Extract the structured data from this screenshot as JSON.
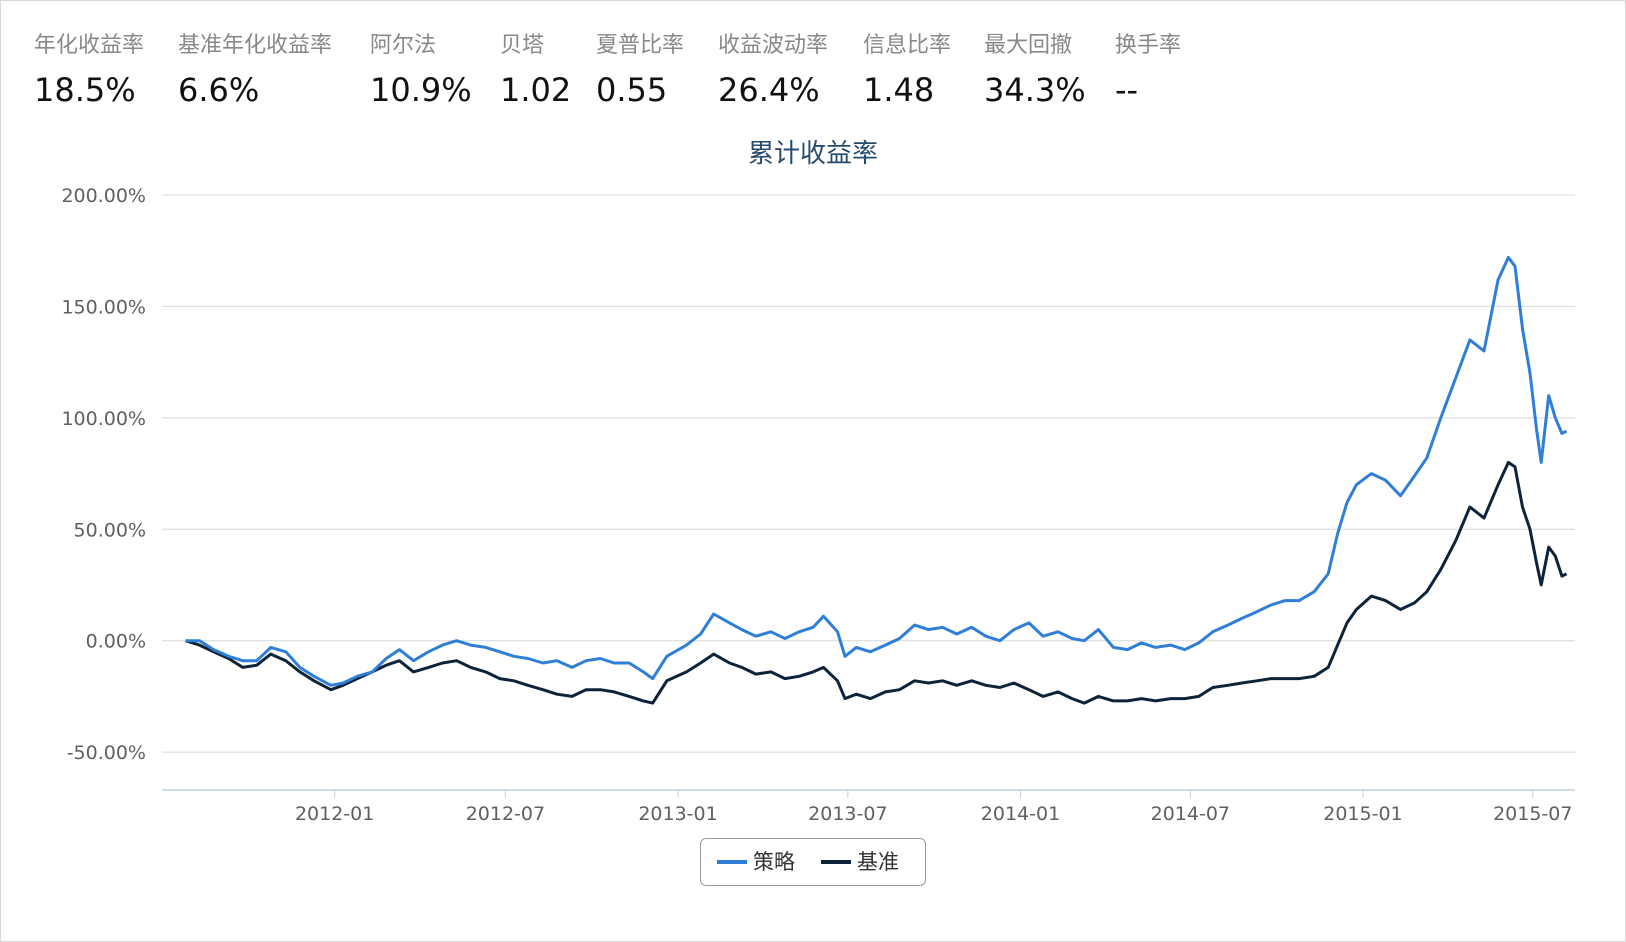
{
  "metrics": [
    {
      "label": "年化收益率",
      "value": "18.5%"
    },
    {
      "label": "基准年化收益率",
      "value": "6.6%"
    },
    {
      "label": "阿尔法",
      "value": "10.9%"
    },
    {
      "label": "贝塔",
      "value": "1.02"
    },
    {
      "label": "夏普比率",
      "value": "0.55"
    },
    {
      "label": "收益波动率",
      "value": "26.4%"
    },
    {
      "label": "信息比率",
      "value": "1.48"
    },
    {
      "label": "最大回撤",
      "value": "34.3%"
    },
    {
      "label": "换手率",
      "value": "--"
    }
  ],
  "chart_data": {
    "type": "line",
    "title": "累计收益率",
    "y_tick_labels": [
      "200.00%",
      "150.00%",
      "100.00%",
      "50.00%",
      "0.00%",
      "-50.00%"
    ],
    "y_ticks": [
      200,
      150,
      100,
      50,
      0,
      -50
    ],
    "ylim": [
      -67,
      200
    ],
    "x_tick_labels": [
      "2012-01",
      "2012-07",
      "2013-01",
      "2013-07",
      "2014-01",
      "2014-07",
      "2015-01",
      "2015-07"
    ],
    "x_ticks": [
      "2012-01-01",
      "2012-07-01",
      "2013-01-01",
      "2013-07-01",
      "2014-01-01",
      "2014-07-01",
      "2015-01-01",
      "2015-07-01"
    ],
    "xlim": [
      "2011-07-01",
      "2015-08-15"
    ],
    "grid": true,
    "legend_position": "bottom-center",
    "series": [
      {
        "name": "策略",
        "color": "#2f7ed8",
        "points": [
          [
            "2011-07-26",
            0
          ],
          [
            "2011-08-10",
            0
          ],
          [
            "2011-08-25",
            -4
          ],
          [
            "2011-09-10",
            -7
          ],
          [
            "2011-09-25",
            -9
          ],
          [
            "2011-10-10",
            -9
          ],
          [
            "2011-10-25",
            -3
          ],
          [
            "2011-11-10",
            -5
          ],
          [
            "2011-11-25",
            -12
          ],
          [
            "2011-12-10",
            -16
          ],
          [
            "2011-12-28",
            -20
          ],
          [
            "2012-01-10",
            -19
          ],
          [
            "2012-01-25",
            -16
          ],
          [
            "2012-02-10",
            -14
          ],
          [
            "2012-02-25",
            -8
          ],
          [
            "2012-03-10",
            -4
          ],
          [
            "2012-03-25",
            -9
          ],
          [
            "2012-04-10",
            -5
          ],
          [
            "2012-04-25",
            -2
          ],
          [
            "2012-05-10",
            0
          ],
          [
            "2012-05-25",
            -2
          ],
          [
            "2012-06-10",
            -3
          ],
          [
            "2012-06-25",
            -5
          ],
          [
            "2012-07-10",
            -7
          ],
          [
            "2012-07-25",
            -8
          ],
          [
            "2012-08-10",
            -10
          ],
          [
            "2012-08-25",
            -9
          ],
          [
            "2012-09-10",
            -12
          ],
          [
            "2012-09-25",
            -9
          ],
          [
            "2012-10-10",
            -8
          ],
          [
            "2012-10-25",
            -10
          ],
          [
            "2012-11-10",
            -10
          ],
          [
            "2012-11-25",
            -14
          ],
          [
            "2012-12-05",
            -17
          ],
          [
            "2012-12-20",
            -7
          ],
          [
            "2013-01-10",
            -2
          ],
          [
            "2013-01-25",
            3
          ],
          [
            "2013-02-08",
            12
          ],
          [
            "2013-02-25",
            8
          ],
          [
            "2013-03-10",
            5
          ],
          [
            "2013-03-25",
            2
          ],
          [
            "2013-04-10",
            4
          ],
          [
            "2013-04-25",
            1
          ],
          [
            "2013-05-10",
            4
          ],
          [
            "2013-05-25",
            6
          ],
          [
            "2013-06-05",
            11
          ],
          [
            "2013-06-20",
            4
          ],
          [
            "2013-06-28",
            -7
          ],
          [
            "2013-07-10",
            -3
          ],
          [
            "2013-07-25",
            -5
          ],
          [
            "2013-08-10",
            -2
          ],
          [
            "2013-08-25",
            1
          ],
          [
            "2013-09-10",
            7
          ],
          [
            "2013-09-25",
            5
          ],
          [
            "2013-10-10",
            6
          ],
          [
            "2013-10-25",
            3
          ],
          [
            "2013-11-10",
            6
          ],
          [
            "2013-11-25",
            2
          ],
          [
            "2013-12-10",
            0
          ],
          [
            "2013-12-25",
            5
          ],
          [
            "2014-01-10",
            8
          ],
          [
            "2014-01-25",
            2
          ],
          [
            "2014-02-10",
            4
          ],
          [
            "2014-02-25",
            1
          ],
          [
            "2014-03-10",
            0
          ],
          [
            "2014-03-25",
            5
          ],
          [
            "2014-04-10",
            -3
          ],
          [
            "2014-04-25",
            -4
          ],
          [
            "2014-05-10",
            -1
          ],
          [
            "2014-05-25",
            -3
          ],
          [
            "2014-06-10",
            -2
          ],
          [
            "2014-06-25",
            -4
          ],
          [
            "2014-07-10",
            -1
          ],
          [
            "2014-07-25",
            4
          ],
          [
            "2014-08-10",
            7
          ],
          [
            "2014-08-25",
            10
          ],
          [
            "2014-09-10",
            13
          ],
          [
            "2014-09-25",
            16
          ],
          [
            "2014-10-10",
            18
          ],
          [
            "2014-10-25",
            18
          ],
          [
            "2014-11-10",
            22
          ],
          [
            "2014-11-25",
            30
          ],
          [
            "2014-12-05",
            48
          ],
          [
            "2014-12-15",
            62
          ],
          [
            "2014-12-25",
            70
          ],
          [
            "2015-01-10",
            75
          ],
          [
            "2015-01-25",
            72
          ],
          [
            "2015-02-10",
            65
          ],
          [
            "2015-02-25",
            74
          ],
          [
            "2015-03-10",
            82
          ],
          [
            "2015-03-25",
            100
          ],
          [
            "2015-04-10",
            118
          ],
          [
            "2015-04-25",
            135
          ],
          [
            "2015-05-10",
            130
          ],
          [
            "2015-05-25",
            162
          ],
          [
            "2015-06-05",
            172
          ],
          [
            "2015-06-12",
            168
          ],
          [
            "2015-06-20",
            140
          ],
          [
            "2015-06-28",
            120
          ],
          [
            "2015-07-05",
            95
          ],
          [
            "2015-07-10",
            80
          ],
          [
            "2015-07-18",
            110
          ],
          [
            "2015-07-25",
            100
          ],
          [
            "2015-08-01",
            93
          ],
          [
            "2015-08-06",
            94
          ]
        ]
      },
      {
        "name": "基准",
        "color": "#0d233a",
        "points": [
          [
            "2011-07-26",
            0
          ],
          [
            "2011-08-10",
            -2
          ],
          [
            "2011-08-25",
            -5
          ],
          [
            "2011-09-10",
            -8
          ],
          [
            "2011-09-25",
            -12
          ],
          [
            "2011-10-10",
            -11
          ],
          [
            "2011-10-25",
            -6
          ],
          [
            "2011-11-10",
            -9
          ],
          [
            "2011-11-25",
            -14
          ],
          [
            "2011-12-10",
            -18
          ],
          [
            "2011-12-28",
            -22
          ],
          [
            "2012-01-10",
            -20
          ],
          [
            "2012-01-25",
            -17
          ],
          [
            "2012-02-10",
            -14
          ],
          [
            "2012-02-25",
            -11
          ],
          [
            "2012-03-10",
            -9
          ],
          [
            "2012-03-25",
            -14
          ],
          [
            "2012-04-10",
            -12
          ],
          [
            "2012-04-25",
            -10
          ],
          [
            "2012-05-10",
            -9
          ],
          [
            "2012-05-25",
            -12
          ],
          [
            "2012-06-10",
            -14
          ],
          [
            "2012-06-25",
            -17
          ],
          [
            "2012-07-10",
            -18
          ],
          [
            "2012-07-25",
            -20
          ],
          [
            "2012-08-10",
            -22
          ],
          [
            "2012-08-25",
            -24
          ],
          [
            "2012-09-10",
            -25
          ],
          [
            "2012-09-25",
            -22
          ],
          [
            "2012-10-10",
            -22
          ],
          [
            "2012-10-25",
            -23
          ],
          [
            "2012-11-10",
            -25
          ],
          [
            "2012-11-25",
            -27
          ],
          [
            "2012-12-05",
            -28
          ],
          [
            "2012-12-20",
            -18
          ],
          [
            "2013-01-10",
            -14
          ],
          [
            "2013-01-25",
            -10
          ],
          [
            "2013-02-08",
            -6
          ],
          [
            "2013-02-25",
            -10
          ],
          [
            "2013-03-10",
            -12
          ],
          [
            "2013-03-25",
            -15
          ],
          [
            "2013-04-10",
            -14
          ],
          [
            "2013-04-25",
            -17
          ],
          [
            "2013-05-10",
            -16
          ],
          [
            "2013-05-25",
            -14
          ],
          [
            "2013-06-05",
            -12
          ],
          [
            "2013-06-20",
            -18
          ],
          [
            "2013-06-28",
            -26
          ],
          [
            "2013-07-10",
            -24
          ],
          [
            "2013-07-25",
            -26
          ],
          [
            "2013-08-10",
            -23
          ],
          [
            "2013-08-25",
            -22
          ],
          [
            "2013-09-10",
            -18
          ],
          [
            "2013-09-25",
            -19
          ],
          [
            "2013-10-10",
            -18
          ],
          [
            "2013-10-25",
            -20
          ],
          [
            "2013-11-10",
            -18
          ],
          [
            "2013-11-25",
            -20
          ],
          [
            "2013-12-10",
            -21
          ],
          [
            "2013-12-25",
            -19
          ],
          [
            "2014-01-10",
            -22
          ],
          [
            "2014-01-25",
            -25
          ],
          [
            "2014-02-10",
            -23
          ],
          [
            "2014-02-25",
            -26
          ],
          [
            "2014-03-10",
            -28
          ],
          [
            "2014-03-25",
            -25
          ],
          [
            "2014-04-10",
            -27
          ],
          [
            "2014-04-25",
            -27
          ],
          [
            "2014-05-10",
            -26
          ],
          [
            "2014-05-25",
            -27
          ],
          [
            "2014-06-10",
            -26
          ],
          [
            "2014-06-25",
            -26
          ],
          [
            "2014-07-10",
            -25
          ],
          [
            "2014-07-25",
            -21
          ],
          [
            "2014-08-10",
            -20
          ],
          [
            "2014-08-25",
            -19
          ],
          [
            "2014-09-10",
            -18
          ],
          [
            "2014-09-25",
            -17
          ],
          [
            "2014-10-10",
            -17
          ],
          [
            "2014-10-25",
            -17
          ],
          [
            "2014-11-10",
            -16
          ],
          [
            "2014-11-25",
            -12
          ],
          [
            "2014-12-05",
            -2
          ],
          [
            "2014-12-15",
            8
          ],
          [
            "2014-12-25",
            14
          ],
          [
            "2015-01-10",
            20
          ],
          [
            "2015-01-25",
            18
          ],
          [
            "2015-02-10",
            14
          ],
          [
            "2015-02-25",
            17
          ],
          [
            "2015-03-10",
            22
          ],
          [
            "2015-03-25",
            32
          ],
          [
            "2015-04-10",
            45
          ],
          [
            "2015-04-25",
            60
          ],
          [
            "2015-05-10",
            55
          ],
          [
            "2015-05-25",
            70
          ],
          [
            "2015-06-05",
            80
          ],
          [
            "2015-06-12",
            78
          ],
          [
            "2015-06-20",
            60
          ],
          [
            "2015-06-28",
            50
          ],
          [
            "2015-07-05",
            35
          ],
          [
            "2015-07-10",
            25
          ],
          [
            "2015-07-18",
            42
          ],
          [
            "2015-07-25",
            38
          ],
          [
            "2015-08-01",
            29
          ],
          [
            "2015-08-06",
            30
          ]
        ]
      }
    ]
  }
}
